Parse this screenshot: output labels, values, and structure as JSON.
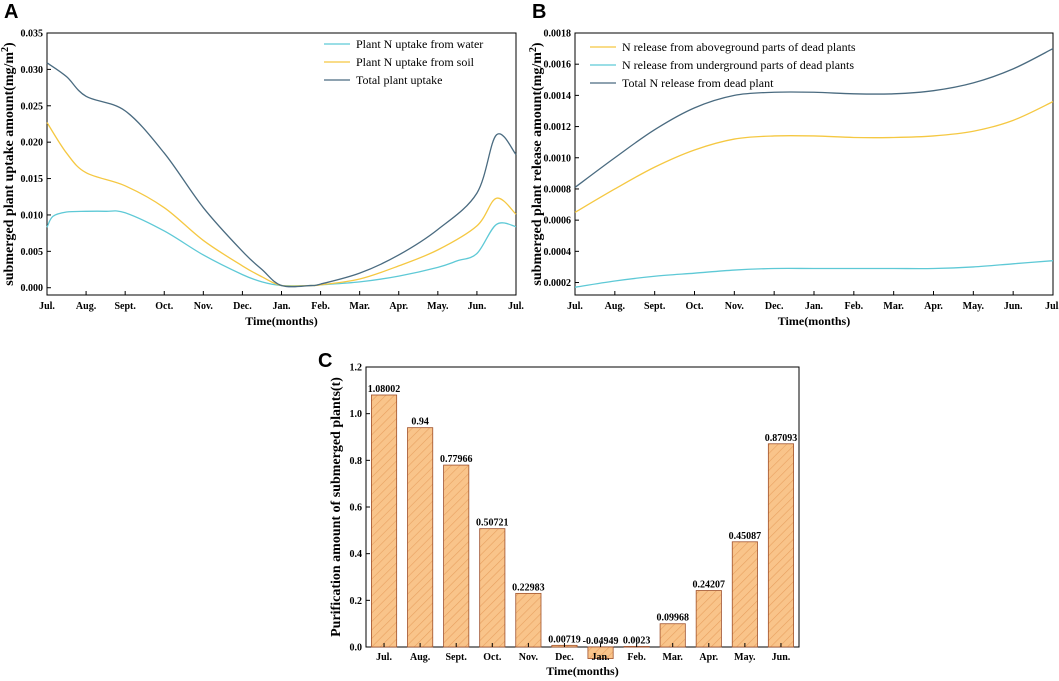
{
  "chart_data": [
    {
      "panel": "A",
      "type": "line",
      "ylabel": "submerged plant uptake amount(mg/m",
      "ylabel_sup": "2",
      "ylabel_close": ")",
      "xlabel": "Time(months)",
      "categories": [
        "Jul.",
        "Aug.",
        "Sept.",
        "Oct.",
        "Nov.",
        "Dec.",
        "Jan.",
        "Feb.",
        "Mar.",
        "Apr.",
        "May.",
        "Jun.",
        "Jul."
      ],
      "ylim": [
        -0.001,
        0.035
      ],
      "yticks": [
        "0.000",
        "0.005",
        "0.010",
        "0.015",
        "0.020",
        "0.025",
        "0.030",
        "0.035"
      ],
      "ytick_values": [
        0,
        0.005,
        0.01,
        0.015,
        0.02,
        0.025,
        0.03,
        0.035
      ],
      "series": [
        {
          "name": "Plant N uptake from water",
          "color": "#5ec9d6",
          "x": [
            0,
            0.15,
            0.5,
            1,
            1.5,
            2,
            3,
            4,
            5,
            5.5,
            6,
            6.75,
            7,
            8,
            9,
            10,
            10.5,
            11,
            11.5,
            12
          ],
          "y": [
            0.0083,
            0.0098,
            0.0104,
            0.0105,
            0.0105,
            0.0103,
            0.0078,
            0.0045,
            0.0018,
            0.0008,
            0.0003,
            0.0003,
            0.0004,
            0.0008,
            0.0016,
            0.0028,
            0.0037,
            0.0047,
            0.0087,
            0.0084
          ]
        },
        {
          "name": "Plant N uptake from soil",
          "color": "#f5c842",
          "x": [
            0,
            0.5,
            1,
            2,
            3,
            4,
            5,
            5.5,
            6,
            6.75,
            7,
            8,
            9,
            10,
            11,
            11.5,
            12
          ],
          "y": [
            0.0227,
            0.0185,
            0.0158,
            0.014,
            0.011,
            0.0065,
            0.003,
            0.0015,
            0.0003,
            0.0003,
            0.0004,
            0.0012,
            0.003,
            0.0052,
            0.0085,
            0.0123,
            0.0101
          ]
        },
        {
          "name": "Total plant uptake",
          "color": "#4a6b80",
          "x": [
            0,
            0.5,
            1,
            2,
            3,
            4,
            5,
            5.5,
            6,
            6.75,
            7,
            8,
            9,
            10,
            11,
            11.5,
            12
          ],
          "y": [
            0.0309,
            0.029,
            0.0263,
            0.0243,
            0.0185,
            0.011,
            0.005,
            0.0025,
            0.0003,
            0.0003,
            0.0005,
            0.002,
            0.0045,
            0.008,
            0.013,
            0.021,
            0.0183
          ]
        }
      ]
    },
    {
      "panel": "B",
      "type": "line",
      "ylabel": "submerged plant release amount(mg/m",
      "ylabel_sup": "2",
      "ylabel_close": ")",
      "xlabel": "Time(months)",
      "categories": [
        "Jul.",
        "Aug.",
        "Sept.",
        "Oct.",
        "Nov.",
        "Dec.",
        "Jan.",
        "Feb.",
        "Mar.",
        "Apr.",
        "May.",
        "Jun.",
        "Jul."
      ],
      "ylim": [
        0.00012,
        0.0018
      ],
      "yticks": [
        "0.0002",
        "0.0004",
        "0.0006",
        "0.0008",
        "0.0010",
        "0.0012",
        "0.0014",
        "0.0016",
        "0.0018"
      ],
      "ytick_values": [
        0.0002,
        0.0004,
        0.0006,
        0.0008,
        0.001,
        0.0012,
        0.0014,
        0.0016,
        0.0018
      ],
      "series": [
        {
          "name": "N release from aboveground parts of dead plants",
          "color": "#f5c842",
          "x": [
            0,
            1,
            2,
            3,
            4,
            5,
            6,
            7,
            8,
            9,
            10,
            11,
            12
          ],
          "y": [
            0.00065,
            0.0008,
            0.00094,
            0.00105,
            0.00112,
            0.00114,
            0.00114,
            0.00113,
            0.00113,
            0.00114,
            0.00117,
            0.00124,
            0.00136
          ]
        },
        {
          "name": "N release from underground parts of dead plants",
          "color": "#5ec9d6",
          "x": [
            0,
            1,
            2,
            3,
            4,
            5,
            6,
            7,
            8,
            9,
            10,
            11,
            12
          ],
          "y": [
            0.00017,
            0.00021,
            0.00024,
            0.00026,
            0.00028,
            0.00029,
            0.00029,
            0.00029,
            0.00029,
            0.00029,
            0.0003,
            0.00032,
            0.00034
          ]
        },
        {
          "name": "Total N release from dead plant",
          "color": "#4a6b80",
          "x": [
            0,
            1,
            2,
            3,
            4,
            5,
            6,
            7,
            8,
            9,
            10,
            11,
            12
          ],
          "y": [
            0.00081,
            0.001,
            0.00118,
            0.00132,
            0.0014,
            0.00142,
            0.00142,
            0.00141,
            0.00141,
            0.00143,
            0.00148,
            0.00157,
            0.0017
          ]
        }
      ]
    },
    {
      "panel": "C",
      "type": "bar",
      "ylabel": "Purification amount of submerged plants(t)",
      "xlabel": "Time(months)",
      "categories": [
        "Jul.",
        "Aug.",
        "Sept.",
        "Oct.",
        "Nov.",
        "Dec.",
        "Jan.",
        "Feb.",
        "Mar.",
        "Apr.",
        "May.",
        "Jun."
      ],
      "values": [
        1.08002,
        0.94,
        0.77966,
        0.50721,
        0.22983,
        0.00719,
        -0.04949,
        0.0023,
        0.09968,
        0.24207,
        0.45087,
        0.87093
      ],
      "labels": [
        "1.08002",
        "0.94",
        "0.77966",
        "0.50721",
        "0.22983",
        "0.00719",
        "-0.04949",
        "0.0023",
        "0.09968",
        "0.24207",
        "0.45087",
        "0.87093"
      ],
      "ylim": [
        0,
        1.2
      ],
      "yticks": [
        "0.0",
        "0.2",
        "0.4",
        "0.6",
        "0.8",
        "1.0",
        "1.2"
      ],
      "ytick_values": [
        0,
        0.2,
        0.4,
        0.6,
        0.8,
        1.0,
        1.2
      ],
      "bar_fill": "#f9c48a",
      "bar_stroke": "#a0522d"
    }
  ]
}
